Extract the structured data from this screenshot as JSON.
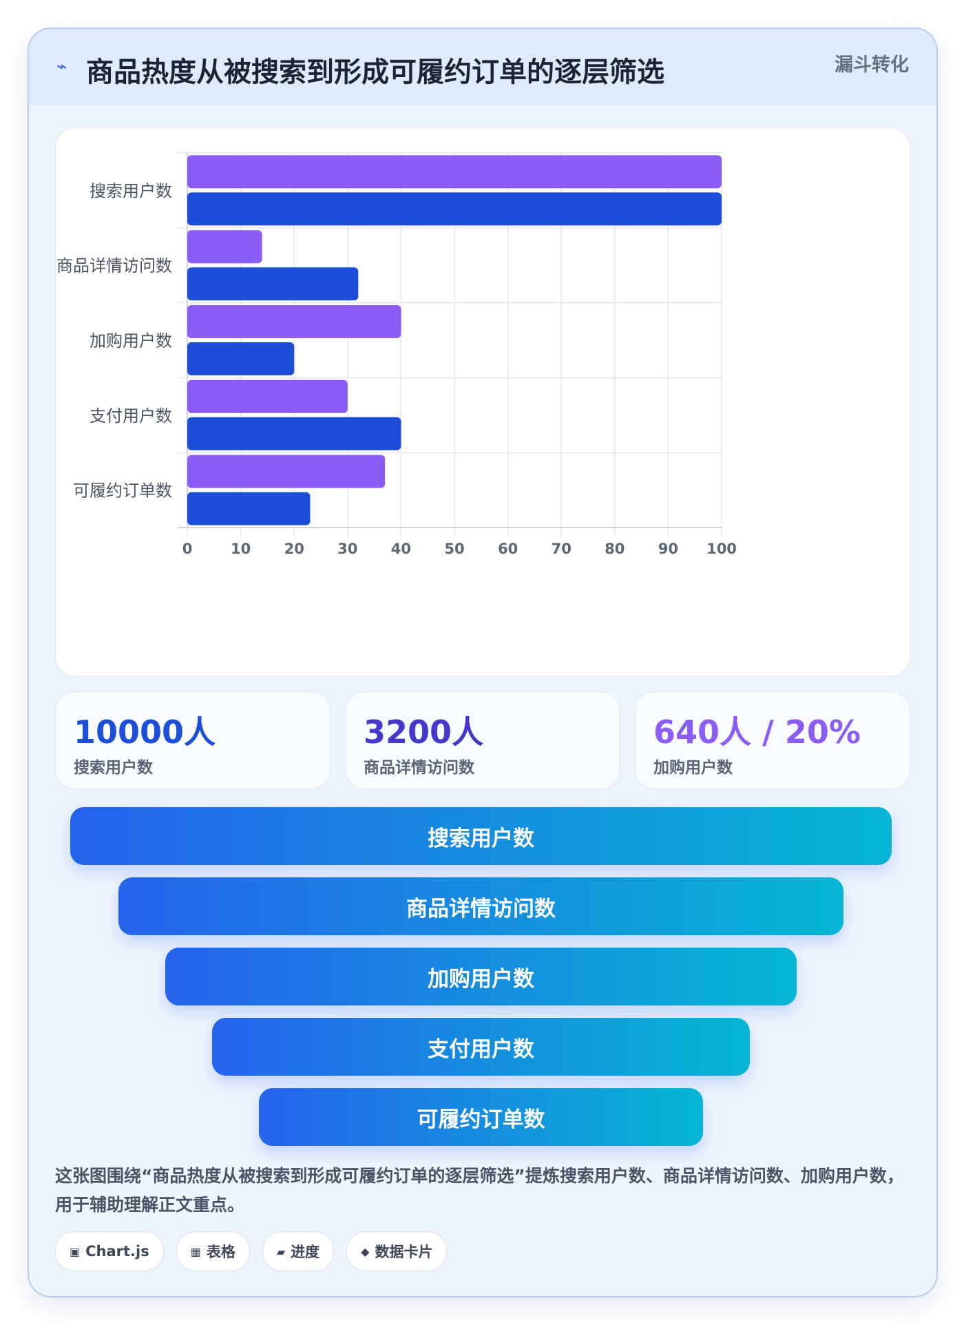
{
  "header": {
    "icon": "lightning-icon",
    "title": "商品热度从被搜索到形成可履约订单的逐层筛选",
    "tag": "漏斗转化"
  },
  "chart_data": {
    "type": "bar",
    "orientation": "horizontal",
    "categories": [
      "搜索用户数",
      "商品详情访问数",
      "加购用户数",
      "支付用户数",
      "可履约订单数"
    ],
    "series": [
      {
        "color": "#8b5cf6",
        "values": [
          100,
          14,
          40,
          30,
          37
        ]
      },
      {
        "color": "#1d4ed8",
        "values": [
          100,
          32,
          20,
          40,
          23
        ]
      }
    ],
    "xlim": [
      0,
      100
    ],
    "xticks": [
      "0",
      "10",
      "20",
      "30",
      "40",
      "50",
      "60",
      "70",
      "80",
      "90",
      "100"
    ],
    "grid": true,
    "legend": "none"
  },
  "stats": [
    {
      "value": "10000人",
      "label": "搜索用户数",
      "color": "#1d4ed8"
    },
    {
      "value": "3200人",
      "label": "商品详情访问数",
      "color": "#4338ca"
    },
    {
      "value": "640人 / 20%",
      "label": "加购用户数",
      "color": "#8b5cf6"
    }
  ],
  "funnel": [
    "搜索用户数",
    "商品详情访问数",
    "加购用户数",
    "支付用户数",
    "可履约订单数"
  ],
  "caption": "这张图围绕“商品热度从被搜索到形成可履约订单的逐层筛选”提炼搜索用户数、商品详情访问数、加购用户数，用于辅助理解正文重点。",
  "chips": [
    {
      "icon": "▣",
      "label": "Chart.js"
    },
    {
      "icon": "▦",
      "label": "表格"
    },
    {
      "icon": "▰",
      "label": "进度"
    },
    {
      "icon": "◆",
      "label": "数据卡片"
    }
  ]
}
